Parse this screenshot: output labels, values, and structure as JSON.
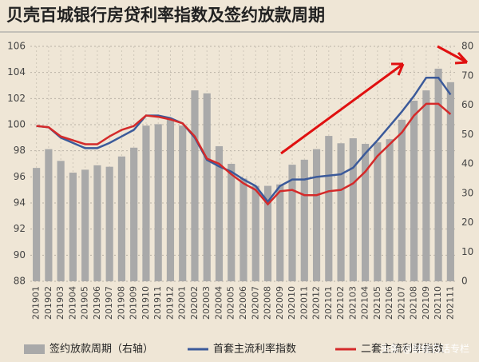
{
  "chart_data": {
    "type": "bar_line",
    "title": "贝壳百城银行房贷利率指数及签约放款周期",
    "watermark": "头条 @财经白话专栏",
    "categories": [
      "201901",
      "201902",
      "201903",
      "201904",
      "201905",
      "201906",
      "201907",
      "201908",
      "201909",
      "201910",
      "201911",
      "201912",
      "202001",
      "202002",
      "202003",
      "202004",
      "202005",
      "202006",
      "202007",
      "202008",
      "202009",
      "202010",
      "202011",
      "202012",
      "202101",
      "202102",
      "202103",
      "202104",
      "202105",
      "202106",
      "202107",
      "202108",
      "202109",
      "202110",
      "202111"
    ],
    "series": [
      {
        "name": "签约放款周期（右轴）",
        "type": "bar",
        "axis": "y2",
        "color": "#a9a9a9",
        "values": [
          38.6,
          45,
          41,
          37,
          38,
          39.5,
          39,
          42.5,
          45.5,
          53,
          53.5,
          55,
          53,
          65,
          64,
          46,
          40,
          35,
          32.5,
          32.5,
          33,
          39.7,
          41.4,
          45,
          49.5,
          47,
          48.7,
          46.8,
          47.3,
          48.4,
          55,
          61.5,
          65,
          72.4,
          67.8
        ]
      },
      {
        "name": "首套主流利率指数",
        "type": "line",
        "color": "#3b5a9a",
        "values": [
          99.9,
          99.8,
          99.0,
          98.6,
          98.2,
          98.2,
          98.6,
          99.1,
          99.6,
          100.7,
          100.7,
          100.5,
          100.1,
          99.0,
          97.3,
          96.8,
          96.4,
          95.8,
          95.3,
          94.1,
          95.3,
          95.8,
          95.8,
          96.0,
          96.1,
          96.2,
          96.7,
          97.8,
          98.8,
          99.9,
          101.0,
          102.2,
          103.6,
          103.6,
          102.3
        ]
      },
      {
        "name": "二套主流利率指数",
        "type": "line",
        "color": "#d42a2a",
        "values": [
          99.9,
          99.8,
          99.1,
          98.8,
          98.5,
          98.5,
          99.1,
          99.6,
          99.9,
          100.7,
          100.6,
          100.4,
          100.1,
          99.1,
          97.4,
          97.0,
          96.2,
          95.5,
          95.0,
          93.9,
          94.9,
          95.0,
          94.6,
          94.6,
          94.9,
          95.0,
          95.5,
          96.4,
          97.6,
          98.5,
          99.4,
          100.7,
          101.6,
          101.6,
          100.8
        ]
      }
    ],
    "ylim": [
      88,
      106
    ],
    "yticks": [
      88,
      90,
      92,
      94,
      96,
      98,
      100,
      102,
      104,
      106
    ],
    "y2lim": [
      0,
      80
    ],
    "y2ticks": [
      0,
      10,
      20,
      30,
      40,
      50,
      60,
      70,
      80
    ],
    "grid": true,
    "legend": "bottom"
  }
}
